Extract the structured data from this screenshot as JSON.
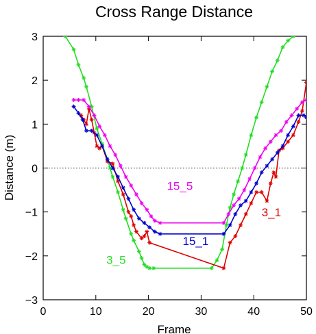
{
  "chart_data": {
    "type": "line",
    "title": "Cross Range Distance",
    "xlabel": "Frame",
    "ylabel": "Distance (m)",
    "xlim": [
      0,
      50
    ],
    "ylim": [
      -3,
      3
    ],
    "x_ticks": [
      0,
      10,
      20,
      30,
      40,
      50
    ],
    "y_ticks": [
      -3,
      -2,
      -1,
      0,
      1,
      2,
      3
    ],
    "x_tick_labels": [
      "0",
      "10",
      "20",
      "30",
      "40",
      "50"
    ],
    "y_tick_labels": [
      "−3",
      "−2",
      "−1",
      "0",
      "1",
      "2",
      "3"
    ],
    "reference_line": {
      "y": 0,
      "style": "dotted"
    },
    "grid": false,
    "series": [
      {
        "name": "3_5",
        "color": "#22dd22",
        "label_at": [
          12,
          -2.18
        ],
        "points": [
          [
            4.2,
            3.0
          ],
          [
            5.8,
            2.7
          ],
          [
            6.7,
            2.35
          ],
          [
            7.7,
            2.05
          ],
          [
            8.2,
            1.85
          ],
          [
            9.2,
            1.4
          ],
          [
            10.2,
            0.9
          ],
          [
            11.2,
            0.55
          ],
          [
            12.2,
            0.2
          ],
          [
            12.7,
            0.0
          ],
          [
            13.2,
            -0.2
          ],
          [
            14.2,
            -0.55
          ],
          [
            15.2,
            -0.95
          ],
          [
            15.7,
            -1.15
          ],
          [
            16.7,
            -1.5
          ],
          [
            17.2,
            -1.65
          ],
          [
            18.2,
            -1.9
          ],
          [
            18.7,
            -2.05
          ],
          [
            19.2,
            -2.2
          ],
          [
            19.7,
            -2.25
          ],
          [
            20.2,
            -2.28
          ],
          [
            21,
            -2.28
          ],
          [
            32,
            -2.28
          ],
          [
            33,
            -2.1
          ],
          [
            34,
            -1.85
          ],
          [
            34.8,
            -1.3
          ],
          [
            35.5,
            -0.9
          ],
          [
            36.2,
            -0.6
          ],
          [
            37,
            -0.3
          ],
          [
            37.8,
            0.0
          ],
          [
            38.5,
            0.3
          ],
          [
            39.5,
            0.75
          ],
          [
            40.5,
            1.15
          ],
          [
            41.5,
            1.5
          ],
          [
            42.5,
            1.85
          ],
          [
            43.5,
            2.2
          ],
          [
            44.5,
            2.45
          ],
          [
            45.5,
            2.75
          ],
          [
            46.5,
            2.9
          ],
          [
            47.5,
            3.0
          ]
        ]
      },
      {
        "name": "3_1",
        "color": "#dd0000",
        "label_at": [
          41.5,
          -1.1
        ],
        "points": [
          [
            7.2,
            1.2
          ],
          [
            7.7,
            1.1
          ],
          [
            8.2,
            1.0
          ],
          [
            8.7,
            1.35
          ],
          [
            9.2,
            1.1
          ],
          [
            9.7,
            0.8
          ],
          [
            10.2,
            0.5
          ],
          [
            10.7,
            0.45
          ],
          [
            11.2,
            0.5
          ],
          [
            12.2,
            0.15
          ],
          [
            13.2,
            0.1
          ],
          [
            14.2,
            -0.3
          ],
          [
            15.2,
            -0.6
          ],
          [
            16.2,
            -1.0
          ],
          [
            16.7,
            -1.1
          ],
          [
            17.2,
            -1.3
          ],
          [
            17.7,
            -1.45
          ],
          [
            18.7,
            -1.6
          ],
          [
            19.2,
            -1.55
          ],
          [
            19.7,
            -1.45
          ],
          [
            20.2,
            -1.7
          ],
          [
            34.3,
            -2.28
          ],
          [
            35.5,
            -1.7
          ],
          [
            36.5,
            -1.55
          ],
          [
            37.5,
            -1.3
          ],
          [
            38.5,
            -1.05
          ],
          [
            39.5,
            -0.8
          ],
          [
            40.5,
            -0.55
          ],
          [
            41.5,
            -0.55
          ],
          [
            42.5,
            -0.75
          ],
          [
            43.2,
            -0.35
          ],
          [
            43.8,
            -0.1
          ],
          [
            44.2,
            -0.2
          ],
          [
            44.8,
            0.4
          ],
          [
            45.5,
            0.45
          ],
          [
            46.5,
            0.6
          ],
          [
            47.5,
            0.75
          ],
          [
            48.5,
            1.05
          ],
          [
            49.2,
            1.3
          ],
          [
            50,
            1.95
          ]
        ]
      },
      {
        "name": "15_1",
        "color": "#0000cc",
        "label_at": [
          26.5,
          -1.75
        ],
        "points": [
          [
            5.8,
            1.4
          ],
          [
            6.7,
            1.25
          ],
          [
            7.5,
            1.1
          ],
          [
            8.2,
            0.85
          ],
          [
            9.2,
            0.85
          ],
          [
            10.2,
            0.75
          ],
          [
            11.2,
            0.5
          ],
          [
            12.2,
            0.2
          ],
          [
            13.2,
            0.0
          ],
          [
            14.2,
            -0.2
          ],
          [
            15.2,
            -0.45
          ],
          [
            16.2,
            -0.7
          ],
          [
            17.2,
            -0.95
          ],
          [
            18.2,
            -1.15
          ],
          [
            19.2,
            -1.25
          ],
          [
            20.2,
            -1.35
          ],
          [
            21.2,
            -1.45
          ],
          [
            22.2,
            -1.5
          ],
          [
            34.3,
            -1.5
          ],
          [
            35.5,
            -1.3
          ],
          [
            36.5,
            -1.05
          ],
          [
            37.5,
            -0.85
          ],
          [
            38.5,
            -0.75
          ],
          [
            39.5,
            -0.55
          ],
          [
            40.5,
            -0.35
          ],
          [
            41.5,
            -0.1
          ],
          [
            42.5,
            0.05
          ],
          [
            43.5,
            0.2
          ],
          [
            44.5,
            0.35
          ],
          [
            45.5,
            0.5
          ],
          [
            46.5,
            0.75
          ],
          [
            47.5,
            0.95
          ],
          [
            48.5,
            1.2
          ],
          [
            49.5,
            1.2
          ],
          [
            50,
            1.15
          ]
        ]
      },
      {
        "name": "15_5",
        "color": "#ee00ee",
        "label_at": [
          23.5,
          -0.5
        ],
        "points": [
          [
            5.8,
            1.55
          ],
          [
            6.7,
            1.55
          ],
          [
            7.7,
            1.55
          ],
          [
            8.7,
            1.4
          ],
          [
            9.7,
            1.2
          ],
          [
            10.7,
            0.95
          ],
          [
            11.7,
            0.75
          ],
          [
            12.7,
            0.5
          ],
          [
            13.7,
            0.3
          ],
          [
            14.7,
            0.05
          ],
          [
            15.7,
            -0.2
          ],
          [
            16.7,
            -0.4
          ],
          [
            17.7,
            -0.6
          ],
          [
            18.7,
            -0.8
          ],
          [
            19.7,
            -0.95
          ],
          [
            20.5,
            -1.1
          ],
          [
            21.2,
            -1.2
          ],
          [
            22.2,
            -1.25
          ],
          [
            34.3,
            -1.25
          ],
          [
            35.2,
            -1.05
          ],
          [
            36.2,
            -0.85
          ],
          [
            37.2,
            -0.7
          ],
          [
            38.2,
            -0.5
          ],
          [
            39.2,
            -0.25
          ],
          [
            40.2,
            0.0
          ],
          [
            41.2,
            0.25
          ],
          [
            42.2,
            0.45
          ],
          [
            43.2,
            0.6
          ],
          [
            44.2,
            0.75
          ],
          [
            45.2,
            0.85
          ],
          [
            46.2,
            1.05
          ],
          [
            47.2,
            1.2
          ],
          [
            48.2,
            1.35
          ],
          [
            49.2,
            1.5
          ],
          [
            50,
            1.55
          ]
        ]
      }
    ]
  }
}
